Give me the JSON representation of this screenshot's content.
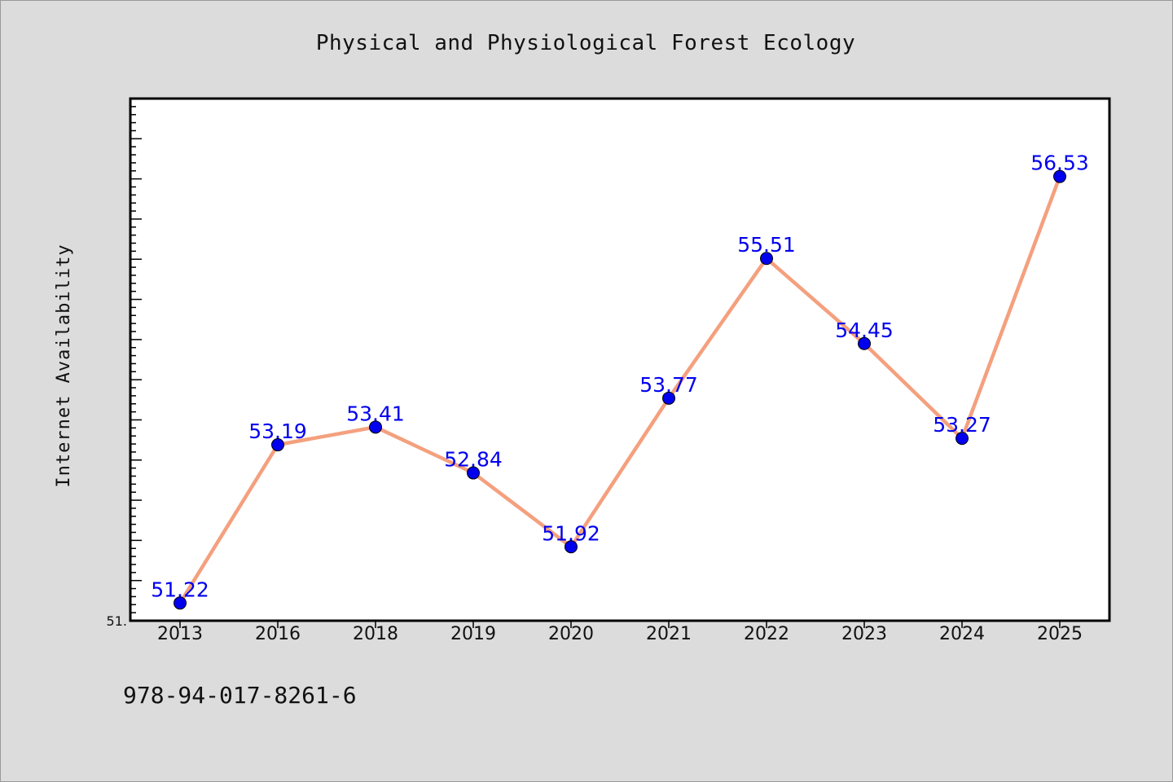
{
  "chart_data": {
    "type": "line",
    "title": "Physical and Physiological Forest Ecology",
    "ylabel": "Internet Availability",
    "xlabel": "",
    "categories": [
      "2013",
      "2016",
      "2018",
      "2019",
      "2020",
      "2021",
      "2022",
      "2023",
      "2024",
      "2025"
    ],
    "series": [
      {
        "values": [
          51.22,
          53.19,
          53.41,
          52.84,
          51.92,
          53.77,
          55.51,
          54.45,
          53.27,
          56.53
        ],
        "data_labels": [
          "51.22",
          "53.19",
          "53.41",
          "52.84",
          "51.92",
          "53.77",
          "55.51",
          "54.45",
          "53.27",
          "56.53"
        ],
        "line_color": "#f4a07e",
        "marker_color": "#0000ee"
      }
    ],
    "ylim": [
      51.0,
      57.5
    ],
    "y_tick_labels": [
      "51."
    ],
    "y_minor_ticks": true,
    "grid": false,
    "legend": "none",
    "colors": {
      "background": "#dcdcdc",
      "plot_background": "#ffffff",
      "label": "#0000ee"
    }
  },
  "footer": {
    "isbn": "978-94-017-8261-6"
  }
}
